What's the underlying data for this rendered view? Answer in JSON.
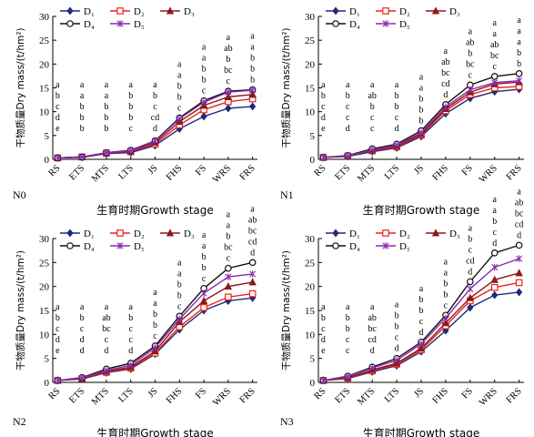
{
  "chart_data": [
    {
      "type": "line",
      "panel_label": "N0",
      "ylabel": "干物质量Dry mass/(t/hm²)",
      "xlabel": "生育时期Growth stage",
      "ylim": [
        0,
        30
      ],
      "yticks": [
        0,
        5,
        10,
        15,
        20,
        25,
        30
      ],
      "categories": [
        "RS",
        "ETS",
        "MTS",
        "LTS",
        "JS",
        "FHS",
        "FS",
        "WRS",
        "FRS"
      ],
      "legend_position": "top-center",
      "series": [
        {
          "name": "D1",
          "color": "#1f2a7a",
          "marker": "diamond",
          "values": [
            0.3,
            0.4,
            1.2,
            1.4,
            2.9,
            6.4,
            9.0,
            10.7,
            11.1
          ]
        },
        {
          "name": "D2",
          "color": "#e8251b",
          "marker": "open-square",
          "values": [
            0.3,
            0.5,
            1.3,
            1.6,
            3.2,
            7.2,
            10.4,
            12.1,
            12.7
          ]
        },
        {
          "name": "D3",
          "color": "#8b1a1a",
          "marker": "triangle",
          "values": [
            0.3,
            0.5,
            1.3,
            1.7,
            3.5,
            7.9,
            11.3,
            13.1,
            13.6
          ]
        },
        {
          "name": "D4",
          "color": "#111111",
          "marker": "open-circle",
          "values": [
            0.3,
            0.5,
            1.4,
            1.9,
            3.9,
            8.7,
            12.3,
            14.3,
            14.6
          ]
        },
        {
          "name": "D5",
          "color": "#8b2ab0",
          "marker": "asterisk",
          "values": [
            0.3,
            0.5,
            1.4,
            1.8,
            3.8,
            8.5,
            12.0,
            14.1,
            14.5
          ]
        }
      ],
      "significance": [
        [
          "a",
          "b",
          "c",
          "d",
          "e"
        ],
        [
          "a",
          "a",
          "b",
          "b",
          "b"
        ],
        [
          "a",
          "a",
          "b",
          "b",
          "b"
        ],
        [
          "a",
          "b",
          "b",
          "b",
          "c"
        ],
        [
          "a",
          "b",
          "c",
          "cd",
          "d"
        ],
        [
          "a",
          "a",
          "b",
          "b",
          "c"
        ],
        [
          "a",
          "a",
          "b",
          "b",
          "c"
        ],
        [
          "a",
          "ab",
          "b",
          "bc",
          "c"
        ],
        [
          "a",
          "a",
          "b",
          "b",
          "b"
        ]
      ]
    },
    {
      "type": "line",
      "panel_label": "N1",
      "ylabel": "干物质量Dry mass/(t/hm²)",
      "xlabel": "生育时期Growth stage",
      "ylim": [
        0,
        30
      ],
      "yticks": [
        0,
        5,
        10,
        15,
        20,
        25,
        30
      ],
      "categories": [
        "RS",
        "ETS",
        "MTS",
        "LTS",
        "JS",
        "FHS",
        "FS",
        "WRS",
        "FRS"
      ],
      "legend_position": "top-center",
      "series": [
        {
          "name": "D1",
          "color": "#1f2a7a",
          "marker": "diamond",
          "values": [
            0.4,
            0.6,
            1.6,
            2.4,
            4.8,
            9.6,
            12.8,
            14.2,
            14.7
          ]
        },
        {
          "name": "D2",
          "color": "#e8251b",
          "marker": "open-square",
          "values": [
            0.4,
            0.7,
            1.8,
            2.6,
            5.1,
            10.2,
            13.6,
            15.0,
            15.3
          ]
        },
        {
          "name": "D3",
          "color": "#8b1a1a",
          "marker": "triangle",
          "values": [
            0.4,
            0.7,
            1.9,
            2.8,
            5.3,
            10.6,
            14.1,
            15.8,
            16.2
          ]
        },
        {
          "name": "D4",
          "color": "#111111",
          "marker": "open-circle",
          "values": [
            0.4,
            0.8,
            2.2,
            3.2,
            6.0,
            11.5,
            15.6,
            17.4,
            18.0
          ]
        },
        {
          "name": "D5",
          "color": "#8b2ab0",
          "marker": "asterisk",
          "values": [
            0.4,
            0.7,
            2.0,
            3.0,
            5.6,
            11.0,
            14.6,
            16.1,
            16.5
          ]
        }
      ],
      "significance": [
        [
          "a",
          "b",
          "c",
          "d",
          "e"
        ],
        [
          "a",
          "b",
          "c",
          "c",
          "d"
        ],
        [
          "a",
          "ab",
          "b",
          "c",
          "c"
        ],
        [
          "a",
          "b",
          "b",
          "c",
          "d"
        ],
        [
          "a",
          "a",
          "b",
          "b",
          "b"
        ],
        [
          "a",
          "ab",
          "bc",
          "cd",
          "d"
        ],
        [
          "a",
          "ab",
          "b",
          "bc",
          "c"
        ],
        [
          "a",
          "a",
          "ab",
          "bc",
          "c"
        ],
        [
          "a",
          "a",
          "a",
          "b",
          "b"
        ]
      ]
    },
    {
      "type": "line",
      "panel_label": "N2",
      "ylabel": "干物质量Dry mass/(t/hm²)",
      "xlabel": "生育时期Growth stage",
      "ylim": [
        0,
        30
      ],
      "yticks": [
        0,
        5,
        10,
        15,
        20,
        25,
        30
      ],
      "categories": [
        "RS",
        "ETS",
        "MTS",
        "LTS",
        "JS",
        "FHS",
        "FS",
        "WRS",
        "FRS"
      ],
      "legend_position": "top-center",
      "series": [
        {
          "name": "D1",
          "color": "#1f2a7a",
          "marker": "diamond",
          "values": [
            0.4,
            0.7,
            2.0,
            2.8,
            5.9,
            11.0,
            15.0,
            17.0,
            17.6
          ]
        },
        {
          "name": "D2",
          "color": "#e8251b",
          "marker": "open-square",
          "values": [
            0.4,
            0.8,
            2.1,
            3.0,
            6.1,
            11.6,
            15.6,
            17.8,
            18.5
          ]
        },
        {
          "name": "D3",
          "color": "#8b1a1a",
          "marker": "triangle",
          "values": [
            0.4,
            0.8,
            2.3,
            3.2,
            6.5,
            12.6,
            17.0,
            20.0,
            20.9
          ]
        },
        {
          "name": "D4",
          "color": "#111111",
          "marker": "open-circle",
          "values": [
            0.4,
            1.0,
            2.8,
            4.0,
            7.6,
            13.8,
            19.6,
            23.8,
            25.0
          ]
        },
        {
          "name": "D5",
          "color": "#8b2ab0",
          "marker": "asterisk",
          "values": [
            0.4,
            0.9,
            2.5,
            3.6,
            7.2,
            13.2,
            18.6,
            22.0,
            22.6
          ]
        }
      ],
      "significance": [
        [
          "a",
          "b",
          "c",
          "d",
          "e"
        ],
        [
          "a",
          "b",
          "c",
          "d",
          "d"
        ],
        [
          "a",
          "ab",
          "bc",
          "c",
          "d"
        ],
        [
          "a",
          "b",
          "c",
          "c",
          "d"
        ],
        [
          "a",
          "a",
          "b",
          "b",
          "c"
        ],
        [
          "a",
          "a",
          "b",
          "b",
          "c"
        ],
        [
          "a",
          "a",
          "b",
          "b",
          "c"
        ],
        [
          "a",
          "a",
          "b",
          "bc",
          "c"
        ],
        [
          "a",
          "ab",
          "bc",
          "cd",
          "d"
        ]
      ]
    },
    {
      "type": "line",
      "panel_label": "N3",
      "ylabel": "干物质量Dry mass/(t/hm²)",
      "xlabel": "生育时期Growth stage",
      "ylim": [
        0,
        30
      ],
      "yticks": [
        0,
        5,
        10,
        15,
        20,
        25,
        30
      ],
      "categories": [
        "RS",
        "ETS",
        "MTS",
        "LTS",
        "JS",
        "FHS",
        "FS",
        "WRS",
        "FRS"
      ],
      "legend_position": "top-center",
      "series": [
        {
          "name": "D1",
          "color": "#1f2a7a",
          "marker": "diamond",
          "values": [
            0.4,
            0.8,
            2.2,
            3.5,
            6.4,
            10.8,
            15.6,
            18.2,
            18.8
          ]
        },
        {
          "name": "D2",
          "color": "#e8251b",
          "marker": "open-square",
          "values": [
            0.4,
            0.9,
            2.4,
            3.8,
            6.8,
            11.8,
            17.0,
            19.8,
            20.8
          ]
        },
        {
          "name": "D3",
          "color": "#8b1a1a",
          "marker": "triangle",
          "values": [
            0.4,
            1.0,
            2.6,
            4.0,
            7.1,
            12.4,
            17.6,
            21.4,
            22.8
          ]
        },
        {
          "name": "D4",
          "color": "#111111",
          "marker": "open-circle",
          "values": [
            0.4,
            1.3,
            3.2,
            5.0,
            8.4,
            14.0,
            21.0,
            27.0,
            28.6
          ]
        },
        {
          "name": "D5",
          "color": "#8b2ab0",
          "marker": "asterisk",
          "values": [
            0.4,
            1.2,
            3.0,
            4.6,
            8.0,
            13.4,
            19.5,
            24.0,
            25.8
          ]
        }
      ],
      "significance": [
        [
          "a",
          "b",
          "c",
          "d",
          "e"
        ],
        [
          "a",
          "b",
          "b",
          "c",
          "c"
        ],
        [
          "a",
          "ab",
          "bc",
          "cd",
          "d"
        ],
        [
          "a",
          "b",
          "b",
          "c",
          "d"
        ],
        [
          "a",
          "b",
          "b",
          "c",
          "d"
        ],
        [
          "a",
          "a",
          "b",
          "b",
          "c"
        ],
        [
          "a",
          "b",
          "c",
          "cd",
          "d"
        ],
        [
          "a",
          "a",
          "b",
          "c",
          "d"
        ],
        [
          "a",
          "ab",
          "bc",
          "cd",
          "d"
        ]
      ]
    }
  ]
}
